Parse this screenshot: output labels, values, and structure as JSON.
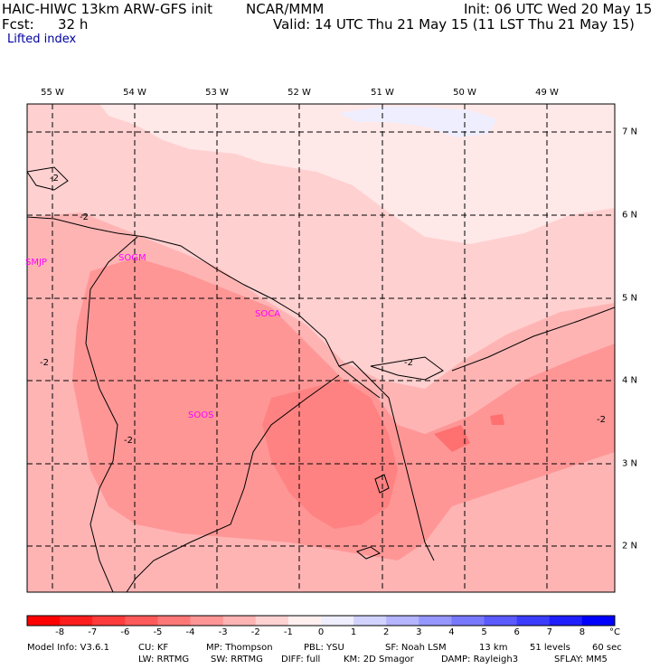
{
  "header": {
    "model_title": "HAIC-HIWC 13km ARW-GFS init",
    "org": "NCAR/MMM",
    "init": "Init: 06 UTC Wed 20 May 15",
    "fcst_label": "Fcst:",
    "fcst_value": "32 h",
    "valid": "Valid: 14 UTC Thu 21 May 15 (11 LST Thu 21 May 15)",
    "field": "Lifted index"
  },
  "axes": {
    "lon_labels": [
      "55 W",
      "54 W",
      "53 W",
      "52 W",
      "51 W",
      "50 W",
      "49 W"
    ],
    "lat_labels": [
      "7 N",
      "6 N",
      "5 N",
      "4 N",
      "3 N",
      "2 N"
    ]
  },
  "stations": [
    "SMJP",
    "SOGM",
    "SOCA",
    "SOOS"
  ],
  "contour_label": "-2",
  "colorbar": {
    "labels": [
      "-8",
      "-7",
      "-6",
      "-5",
      "-4",
      "-3",
      "-2",
      "-1",
      "0",
      "1",
      "2",
      "3",
      "4",
      "5",
      "6",
      "7",
      "8"
    ],
    "unit": "°C",
    "colors": [
      "#ff0000",
      "#ff1e1e",
      "#ff3c3c",
      "#ff5a5a",
      "#ff7878",
      "#ff9696",
      "#ffb4b4",
      "#ffd2d2",
      "#ffefef",
      "#eeeeff",
      "#d2d2ff",
      "#b4b4ff",
      "#9696ff",
      "#7878ff",
      "#5a5aff",
      "#3c3cff",
      "#1e1eff",
      "#0000ff"
    ]
  },
  "footer": {
    "line1": [
      "Model Info: V3.6.1",
      "CU: KF",
      "MP: Thompson",
      "PBL: YSU",
      "SF: Noah LSM",
      "13 km",
      "51 levels",
      "60 sec"
    ],
    "line2": [
      "LW: RRTMG",
      "SW: RRTMG",
      "DIFF: full",
      "KM: 2D Smagor",
      "DAMP: Rayleigh3",
      "SFLAY: MM5"
    ]
  }
}
